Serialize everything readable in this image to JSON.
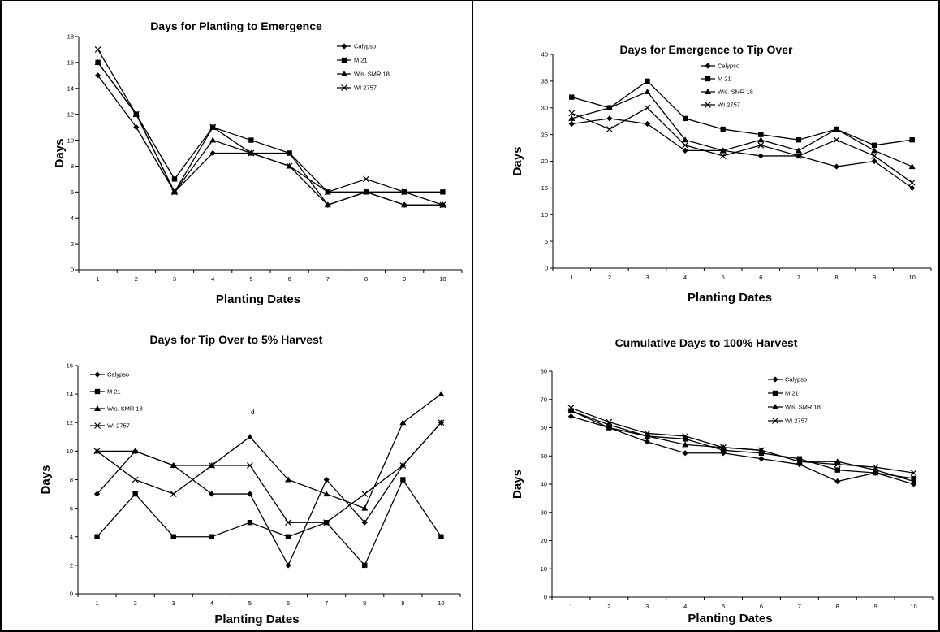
{
  "chart_data": [
    {
      "type": "line",
      "title": "Days for Planting to Emergence",
      "xlabel": "Planting Dates",
      "ylabel": "Days",
      "categories": [
        "1",
        "2",
        "3",
        "4",
        "5",
        "6",
        "7",
        "8",
        "9",
        "10"
      ],
      "ylim": [
        0,
        18
      ],
      "yticks": [
        0,
        2,
        4,
        6,
        8,
        10,
        12,
        14,
        16,
        18
      ],
      "grid": false,
      "legend_position": "top-right",
      "series": [
        {
          "name": "Calypso",
          "marker": "diamond",
          "values": [
            15,
            11,
            6,
            9,
            9,
            9,
            5,
            6,
            5,
            5
          ]
        },
        {
          "name": "M 21",
          "marker": "square",
          "values": [
            16,
            12,
            7,
            11,
            10,
            9,
            6,
            6,
            6,
            6
          ]
        },
        {
          "name": "Wis. SMR 18",
          "marker": "triangle",
          "values": [
            16,
            12,
            6,
            10,
            9,
            8,
            5,
            6,
            5,
            5
          ]
        },
        {
          "name": "WI 2757",
          "marker": "x",
          "values": [
            17,
            12,
            6,
            11,
            9,
            8,
            6,
            7,
            6,
            5
          ]
        }
      ]
    },
    {
      "type": "line",
      "title": "Days for Emergence to Tip Over",
      "xlabel": "Planting Dates",
      "ylabel": "Days",
      "categories": [
        "1",
        "2",
        "3",
        "4",
        "5",
        "6",
        "7",
        "8",
        "9",
        "10"
      ],
      "ylim": [
        0,
        40
      ],
      "yticks": [
        0,
        5,
        10,
        15,
        20,
        25,
        30,
        35,
        40
      ],
      "grid": false,
      "legend_position": "top-right",
      "series": [
        {
          "name": "Calypso",
          "marker": "diamond",
          "values": [
            27,
            28,
            27,
            22,
            22,
            21,
            21,
            19,
            20,
            15
          ]
        },
        {
          "name": "M 21",
          "marker": "square",
          "values": [
            32,
            30,
            35,
            28,
            26,
            25,
            24,
            26,
            23,
            24
          ]
        },
        {
          "name": "Wis. SMR 18",
          "marker": "triangle",
          "values": [
            28,
            30,
            33,
            24,
            22,
            24,
            22,
            26,
            22,
            19
          ]
        },
        {
          "name": "WI 2757",
          "marker": "x",
          "values": [
            29,
            26,
            30,
            23,
            21,
            23,
            21,
            24,
            21,
            16
          ]
        }
      ]
    },
    {
      "type": "line",
      "title": "Days for Tip Over to 5% Harvest",
      "xlabel": "Planting Dates",
      "ylabel": "Days",
      "categories": [
        "1",
        "2",
        "3",
        "4",
        "5",
        "6",
        "7",
        "8",
        "9",
        "10"
      ],
      "ylim": [
        0,
        16
      ],
      "yticks": [
        0,
        2,
        4,
        6,
        8,
        10,
        12,
        14,
        16
      ],
      "grid": false,
      "legend_position": "top-left",
      "annotation": "d",
      "series": [
        {
          "name": "Calypso",
          "marker": "diamond",
          "values": [
            7,
            10,
            9,
            7,
            7,
            2,
            8,
            5,
            9,
            12
          ]
        },
        {
          "name": "M 21",
          "marker": "square",
          "values": [
            4,
            7,
            4,
            4,
            5,
            4,
            5,
            2,
            8,
            4
          ]
        },
        {
          "name": "Wis. SMR 18",
          "marker": "triangle",
          "values": [
            10,
            10,
            9,
            9,
            11,
            8,
            7,
            6,
            12,
            14
          ]
        },
        {
          "name": "WI 2757",
          "marker": "x",
          "values": [
            10,
            8,
            7,
            9,
            9,
            5,
            5,
            7,
            9,
            12
          ]
        }
      ]
    },
    {
      "type": "line",
      "title": "Cumulative Days to 100% Harvest",
      "xlabel": "Planting Dates",
      "ylabel": "Days",
      "categories": [
        "1",
        "2",
        "3",
        "4",
        "5",
        "6",
        "7",
        "8",
        "9",
        "10"
      ],
      "ylim": [
        0,
        80
      ],
      "yticks": [
        0,
        10,
        20,
        30,
        40,
        50,
        60,
        70,
        80
      ],
      "grid": false,
      "legend_position": "top-right",
      "series": [
        {
          "name": "Calypso",
          "marker": "diamond",
          "values": [
            64,
            60,
            55,
            51,
            51,
            49,
            47,
            41,
            44,
            40
          ]
        },
        {
          "name": "M 21",
          "marker": "square",
          "values": [
            66,
            60,
            57,
            56,
            52,
            51,
            49,
            45,
            44,
            42
          ]
        },
        {
          "name": "Wis. SMR 18",
          "marker": "triangle",
          "values": [
            66,
            61,
            57,
            54,
            53,
            52,
            48,
            48,
            45,
            41
          ]
        },
        {
          "name": "WI 2757",
          "marker": "x",
          "values": [
            67,
            62,
            58,
            57,
            53,
            52,
            48,
            47,
            46,
            44
          ]
        }
      ]
    }
  ]
}
